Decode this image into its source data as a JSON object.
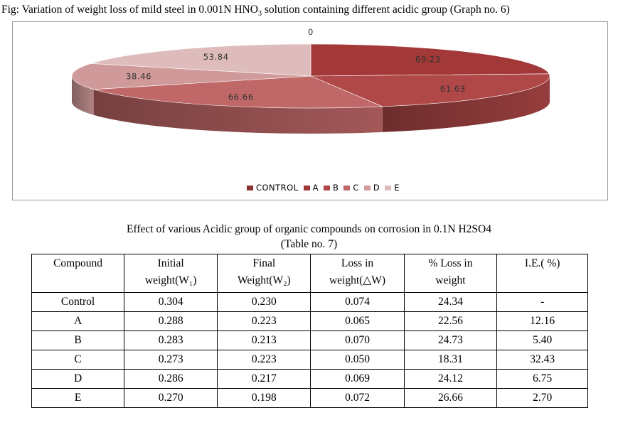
{
  "figure": {
    "caption_main": "Fig: Variation of weight loss of mild steel in 0.001N HNO",
    "caption_sub": "3",
    "caption_tail": " solution containing different acidic group (Graph no. 6)"
  },
  "chart_data": {
    "type": "pie",
    "categories": [
      "CONTROL",
      "A",
      "B",
      "C",
      "D",
      "E"
    ],
    "values": [
      0,
      69.23,
      61.63,
      66.66,
      38.46,
      53.84
    ],
    "data_labels": [
      "0",
      "69.23",
      "61.63",
      "66.66",
      "38.46",
      "53.84"
    ],
    "legend_position": "bottom",
    "colors": [
      "#8b3232",
      "#a33838",
      "#b04848",
      "#c06868",
      "#d09a9a",
      "#dfbcbc"
    ]
  },
  "table": {
    "title": "Effect of various Acidic group of organic compounds on corrosion in 0.1N H2SO4",
    "subtitle": "(Table no. 7)",
    "headers": [
      {
        "line1": "Compound",
        "line2": ""
      },
      {
        "line1": "Initial",
        "line2": "weight(W₁)"
      },
      {
        "line1": "Final",
        "line2": "Weight(W₂)"
      },
      {
        "line1": "Loss in",
        "line2": "weight(△W)"
      },
      {
        "line1": "% Loss in",
        "line2": "weight"
      },
      {
        "line1": "I.E.( %)",
        "line2": ""
      }
    ],
    "rows": [
      [
        "Control",
        "0.304",
        "0.230",
        "0.074",
        "24.34",
        "-"
      ],
      [
        "A",
        "0.288",
        "0.223",
        "0.065",
        "22.56",
        "12.16"
      ],
      [
        "B",
        "0.283",
        "0.213",
        "0.070",
        "24.73",
        "5.40"
      ],
      [
        "C",
        "0.273",
        "0.223",
        "0.050",
        "18.31",
        "32.43"
      ],
      [
        "D",
        "0.286",
        "0.217",
        "0.069",
        "24.12",
        "6.75"
      ],
      [
        "E",
        "0.270",
        "0.198",
        "0.072",
        "26.66",
        "2.70"
      ]
    ]
  }
}
